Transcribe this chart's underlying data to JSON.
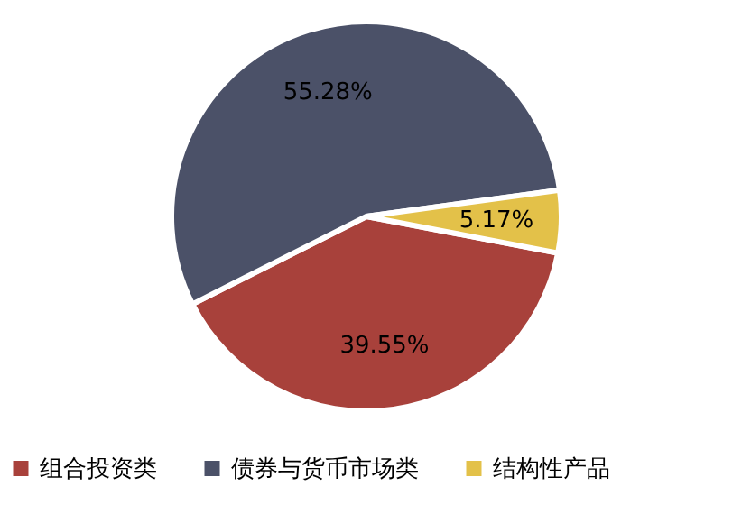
{
  "chart_data": {
    "type": "pie",
    "categories": [
      "组合投资类",
      "债券与货币市场类",
      "结构性产品"
    ],
    "values": [
      39.55,
      55.28,
      5.17
    ],
    "value_labels": [
      "39.55%",
      "55.28%",
      "5.17%"
    ],
    "colors": [
      "#a8413b",
      "#4b5168",
      "#e3c149"
    ],
    "legend": "bottom"
  }
}
